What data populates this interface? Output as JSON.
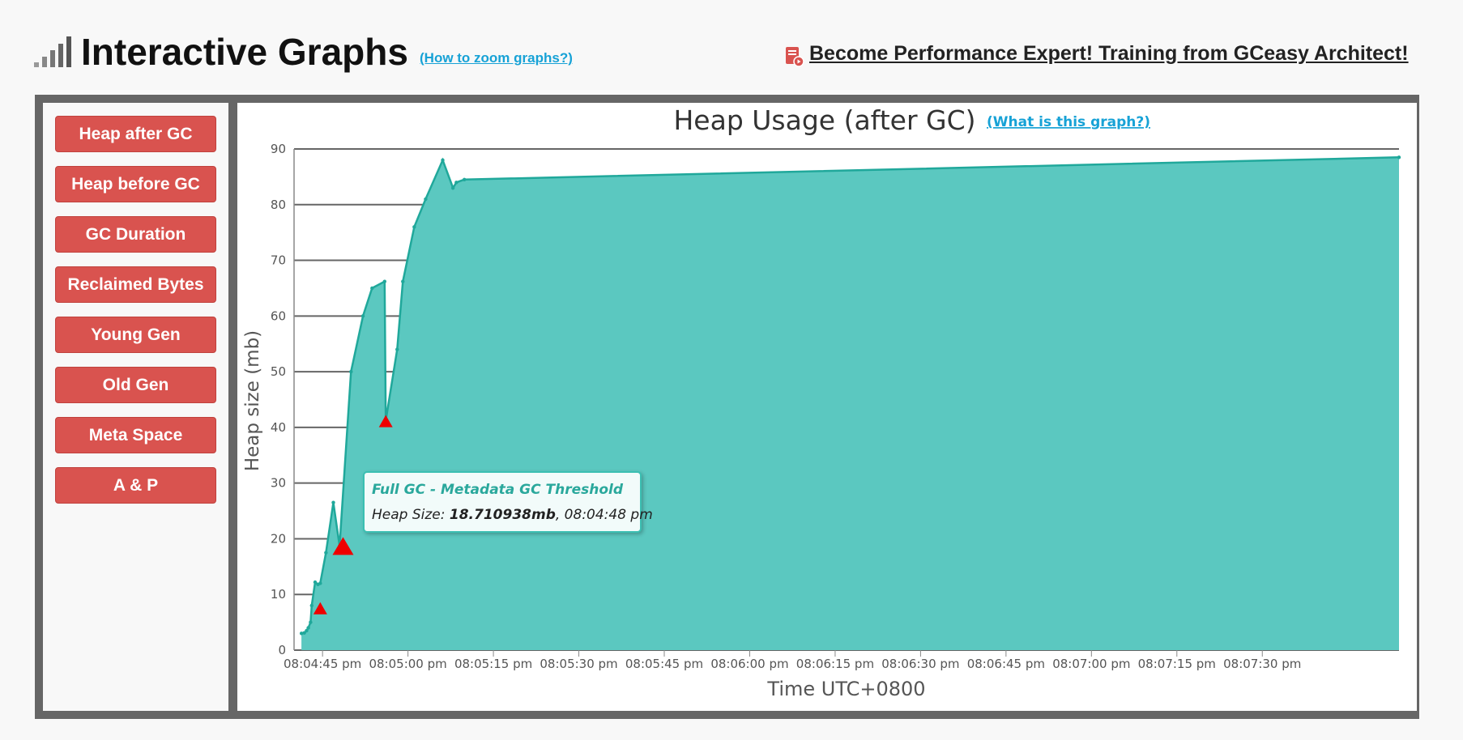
{
  "header": {
    "title": "Interactive Graphs",
    "zoom_link": "(How to zoom graphs?)",
    "training_link": "Become Performance Expert! Training from GCeasy Architect!"
  },
  "sidebar": {
    "items": [
      {
        "label": "Heap after GC"
      },
      {
        "label": "Heap before GC"
      },
      {
        "label": "GC Duration"
      },
      {
        "label": "Reclaimed Bytes"
      },
      {
        "label": "Young Gen"
      },
      {
        "label": "Old Gen"
      },
      {
        "label": "Meta Space"
      },
      {
        "label": "A & P"
      }
    ]
  },
  "chart": {
    "help_link": "(What is this graph?)"
  },
  "tooltip": {
    "title": "Full GC - Metadata GC Threshold",
    "prefix": "Heap Size: ",
    "value": "18.710938mb",
    "suffix": ", 08:04:48 pm"
  },
  "colors": {
    "series_fill": "#5bc8c0",
    "series_line": "#20a89b",
    "marker": "#ee0000",
    "button": "#d9534f",
    "link": "#17a2d6"
  },
  "chart_data": {
    "type": "area",
    "title": "Heap Usage (after GC)",
    "xlabel": "Time UTC+0800",
    "ylabel": "Heap size (mb)",
    "xlim": [
      40,
      234
    ],
    "ylim": [
      0,
      90
    ],
    "x_unit": "seconds after 08:04:00 pm",
    "y_ticks": [
      0,
      10,
      20,
      30,
      40,
      50,
      60,
      70,
      80,
      90
    ],
    "x_ticks": [
      {
        "x": 45,
        "label": "08:04:45 pm"
      },
      {
        "x": 60,
        "label": "08:05:00 pm"
      },
      {
        "x": 75,
        "label": "08:05:15 pm"
      },
      {
        "x": 90,
        "label": "08:05:30 pm"
      },
      {
        "x": 105,
        "label": "08:05:45 pm"
      },
      {
        "x": 120,
        "label": "08:06:00 pm"
      },
      {
        "x": 135,
        "label": "08:06:15 pm"
      },
      {
        "x": 150,
        "label": "08:06:30 pm"
      },
      {
        "x": 165,
        "label": "08:06:45 pm"
      },
      {
        "x": 180,
        "label": "08:07:00 pm"
      },
      {
        "x": 195,
        "label": "08:07:15 pm"
      },
      {
        "x": 210,
        "label": "08:07:30 pm"
      }
    ],
    "series": [
      {
        "x": [
          41.3,
          41.8,
          42.2,
          42.5,
          42.9,
          43.1,
          43.7,
          44.2,
          44.6,
          45.6,
          46.9,
          48.0,
          50.0,
          52.1,
          53.7,
          55.9,
          56.1,
          58.1,
          59.1,
          61.1,
          63.1,
          66.1,
          67.9,
          68.5,
          69.9,
          234.0
        ],
        "y": [
          3.0,
          3.1,
          3.5,
          4.0,
          5.0,
          8.0,
          12.2,
          11.8,
          12.0,
          17.5,
          26.5,
          18.7,
          50.0,
          60.0,
          65.0,
          66.2,
          41.2,
          54.0,
          66.2,
          76.0,
          81.0,
          88.0,
          83.0,
          84.0,
          84.5,
          88.5
        ]
      }
    ],
    "gc_markers": [
      {
        "x": 44.6,
        "y": 7.6,
        "type": "Full GC"
      },
      {
        "x": 48.6,
        "y": 18.7,
        "type": "Full GC - Metadata GC Threshold"
      },
      {
        "x": 56.1,
        "y": 41.2,
        "type": "Full GC"
      }
    ]
  }
}
